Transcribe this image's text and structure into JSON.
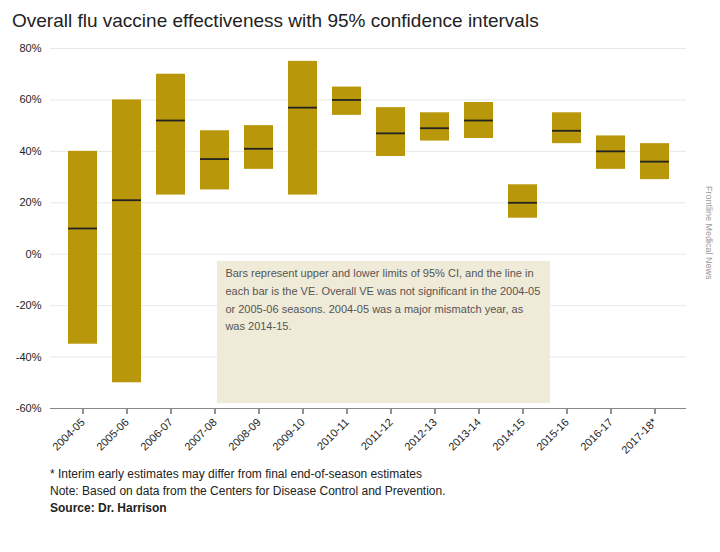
{
  "chart_data": {
    "type": "bar",
    "title": "Overall flu vaccine effectiveness with 95% confidence intervals",
    "categories": [
      "2004-05",
      "2005-06",
      "2006-07",
      "2007-08",
      "2008-09",
      "2009-10",
      "2010-11",
      "2011-12",
      "2012-13",
      "2013-14",
      "2014-15",
      "2015-16",
      "2016-17",
      "2017-18*"
    ],
    "values": [
      10,
      21,
      52,
      37,
      41,
      57,
      60,
      47,
      49,
      52,
      20,
      48,
      40,
      36
    ],
    "ci_lower": [
      -35,
      -50,
      23,
      25,
      33,
      23,
      54,
      38,
      44,
      45,
      14,
      43,
      33,
      29
    ],
    "ci_upper": [
      40,
      60,
      70,
      48,
      50,
      75,
      65,
      57,
      55,
      59,
      27,
      55,
      46,
      43
    ],
    "color": "#B8980A",
    "ylim": [
      -60,
      80
    ],
    "yticks": [
      {
        "value": -60,
        "label": "-60%"
      },
      {
        "value": -40,
        "label": "-40%"
      },
      {
        "value": -20,
        "label": "-20%"
      },
      {
        "value": 0,
        "label": "0%"
      },
      {
        "value": 20,
        "label": "20%"
      },
      {
        "value": 40,
        "label": "40%"
      },
      {
        "value": 60,
        "label": "60%"
      },
      {
        "value": 80,
        "label": "80%"
      }
    ],
    "grid": true,
    "annotation": "Bars represent upper and lower limits of 95% CI, and the line in\neach bar is the VE. Overall VE was not significant in the 2004-05\nor 2005-06 seasons. 2004-05 was a major mismatch year, as\nwas 2014-15.",
    "watermark": "Frontline Medical News",
    "footnotes": [
      "* Interim early estimates may differ from final end-of-season estimates",
      "Note: Based on data from the Centers for Disease Control and Prevention.",
      "Source: Dr. Harrison"
    ]
  }
}
